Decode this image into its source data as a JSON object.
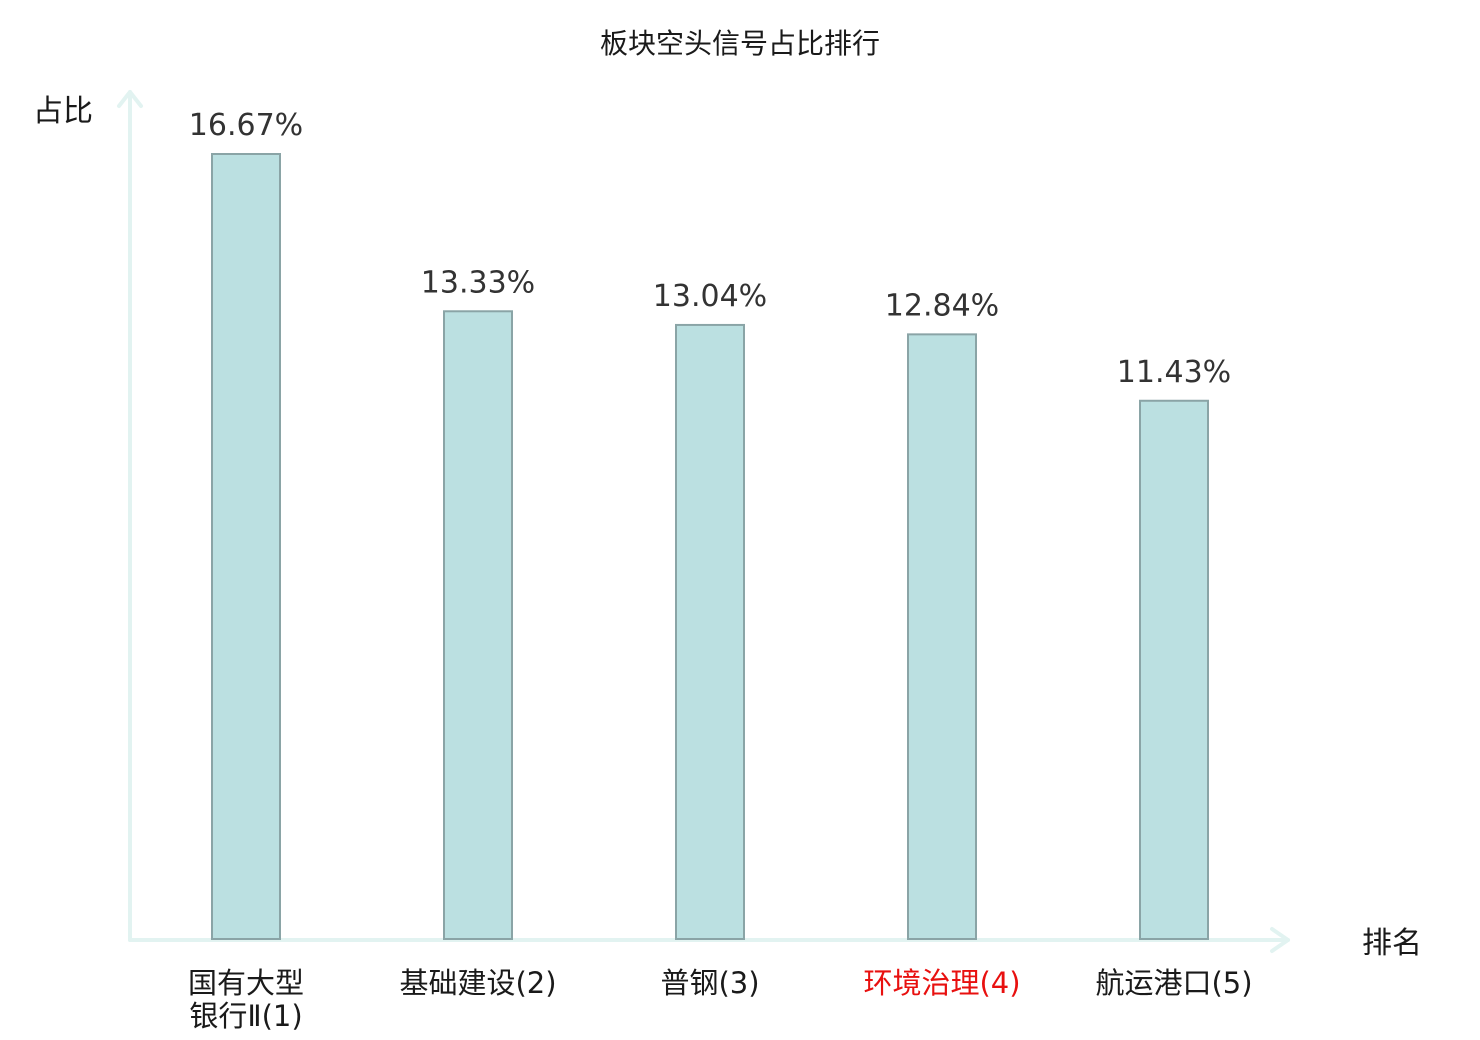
{
  "chart_data": {
    "type": "bar",
    "title": "板块空头信号占比排行",
    "ylabel": "占比",
    "xlabel": "排名",
    "categories": [
      [
        "国有大型",
        "银行Ⅱ(1)"
      ],
      [
        "基础建设(2)"
      ],
      [
        "普钢(3)"
      ],
      [
        "环境治理(4)"
      ],
      [
        "航运港口(5)"
      ]
    ],
    "values": [
      16.67,
      13.33,
      13.04,
      12.84,
      11.43
    ],
    "value_labels": [
      "16.67%",
      "13.33%",
      "13.04%",
      "12.84%",
      "11.43%"
    ],
    "ylim": [
      0,
      16.67
    ],
    "highlight_category_index": 3,
    "grid": false,
    "legend": "none",
    "colors": {
      "bar_fill": "#bbe0e1",
      "bar_stroke": "#8aa4a6",
      "axis": "#e2f3f1",
      "highlight_text": "#e8100f",
      "text": "#1a1a1a"
    }
  }
}
